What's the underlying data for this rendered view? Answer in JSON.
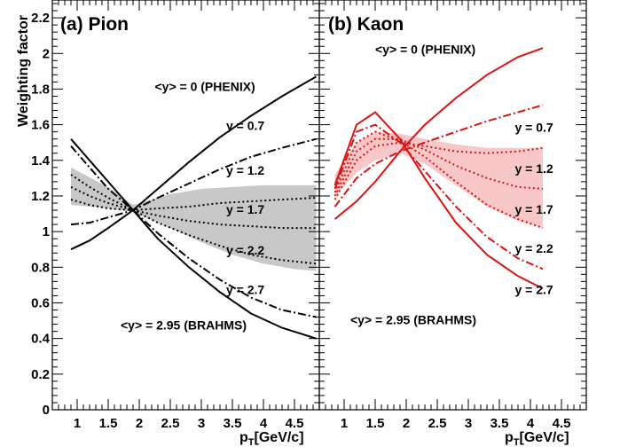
{
  "figure": {
    "y_axis_label": "Weighting factor",
    "x_axis_label_main": "p",
    "x_axis_label_sub": "T",
    "x_axis_label_rest": "[GeV/c]"
  },
  "chart_data": [
    {
      "type": "line",
      "panel_label": "(a) Pion",
      "ylim": [
        0,
        2.3
      ],
      "xlim": [
        0.6,
        4.9
      ],
      "grid": false,
      "x_ticks": [
        "1",
        "1.5",
        "2",
        "2.5",
        "3",
        "3.5",
        "4",
        "4.5"
      ],
      "y_ticks": [
        "0",
        "0.2",
        "0.4",
        "0.6",
        "0.8",
        "1",
        "1.2",
        "1.4",
        "1.6",
        "1.8",
        "2",
        "2.2"
      ],
      "band": {
        "color": "#c8c8c8",
        "x": [
          0.9,
          1.5,
          1.9,
          2.5,
          3.0,
          3.5,
          4.0,
          4.5,
          4.85
        ],
        "upper": [
          1.36,
          1.25,
          1.15,
          1.21,
          1.24,
          1.25,
          1.26,
          1.26,
          1.26
        ],
        "lower": [
          1.15,
          1.13,
          1.11,
          1.02,
          0.94,
          0.87,
          0.82,
          0.79,
          0.78
        ]
      },
      "series": [
        {
          "style": "solid",
          "color": "#000000",
          "x": [
            0.9,
            1.2,
            1.5,
            1.9,
            2.3,
            2.8,
            3.3,
            3.8,
            4.3,
            4.85
          ],
          "y": [
            0.9,
            0.95,
            1.02,
            1.12,
            1.24,
            1.39,
            1.53,
            1.65,
            1.76,
            1.87
          ]
        },
        {
          "style": "dashdot",
          "color": "#000000",
          "x": [
            0.9,
            1.2,
            1.5,
            1.9,
            2.3,
            2.8,
            3.3,
            3.8,
            4.3,
            4.85
          ],
          "y": [
            1.04,
            1.05,
            1.08,
            1.12,
            1.19,
            1.27,
            1.35,
            1.42,
            1.47,
            1.52
          ]
        },
        {
          "style": "dotted",
          "color": "#000000",
          "x": [
            0.9,
            1.2,
            1.5,
            1.9,
            2.3,
            2.8,
            3.3,
            3.8,
            4.3,
            4.85
          ],
          "y": [
            1.18,
            1.15,
            1.13,
            1.12,
            1.13,
            1.14,
            1.16,
            1.17,
            1.18,
            1.19
          ]
        },
        {
          "style": "dotted",
          "color": "#000000",
          "x": [
            0.9,
            1.2,
            1.5,
            1.9,
            2.3,
            2.8,
            3.3,
            3.8,
            4.3,
            4.85
          ],
          "y": [
            1.25,
            1.2,
            1.16,
            1.12,
            1.09,
            1.06,
            1.04,
            1.03,
            1.02,
            1.02
          ]
        },
        {
          "style": "dotted",
          "color": "#000000",
          "x": [
            0.9,
            1.2,
            1.5,
            1.9,
            2.3,
            2.8,
            3.3,
            3.8,
            4.3,
            4.85
          ],
          "y": [
            1.32,
            1.25,
            1.19,
            1.12,
            1.05,
            0.98,
            0.92,
            0.87,
            0.84,
            0.82
          ]
        },
        {
          "style": "dashdot",
          "color": "#000000",
          "x": [
            0.9,
            1.2,
            1.5,
            1.9,
            2.3,
            2.8,
            3.3,
            3.8,
            4.3,
            4.85
          ],
          "y": [
            1.48,
            1.36,
            1.24,
            1.12,
            0.99,
            0.85,
            0.73,
            0.63,
            0.56,
            0.52
          ]
        },
        {
          "style": "solid",
          "color": "#000000",
          "x": [
            0.9,
            1.2,
            1.5,
            1.9,
            2.3,
            2.8,
            3.3,
            3.8,
            4.3,
            4.85
          ],
          "y": [
            1.52,
            1.4,
            1.28,
            1.12,
            0.96,
            0.8,
            0.66,
            0.54,
            0.46,
            0.4
          ]
        }
      ],
      "annotations": [
        {
          "text": "<y> = 0 (PHENIX)",
          "x": 2.25,
          "y": 1.79
        },
        {
          "text": "y = 0.7",
          "x": 3.4,
          "y": 1.57
        },
        {
          "text": "y = 1.2",
          "x": 3.4,
          "y": 1.32
        },
        {
          "text": "y = 1.7",
          "x": 3.4,
          "y": 1.1
        },
        {
          "text": "y = 2.2",
          "x": 3.4,
          "y": 0.87
        },
        {
          "text": "y = 2.7",
          "x": 3.4,
          "y": 0.65
        },
        {
          "text": "<y> = 2.95 (BRAHMS)",
          "x": 1.7,
          "y": 0.45
        }
      ]
    },
    {
      "type": "line",
      "panel_label": "(b) Kaon",
      "ylim": [
        0,
        2.3
      ],
      "xlim": [
        0.6,
        4.9
      ],
      "grid": false,
      "x_ticks": [
        "1",
        "1.5",
        "2",
        "2.5",
        "3",
        "3.5",
        "4",
        "4.5"
      ],
      "y_ticks": [],
      "band": {
        "color": "#f8c8c8",
        "x": [
          0.85,
          1.2,
          1.5,
          1.9,
          2.3,
          2.8,
          3.3,
          3.8,
          4.2
        ],
        "upper": [
          1.32,
          1.5,
          1.56,
          1.55,
          1.52,
          1.49,
          1.47,
          1.47,
          1.47
        ],
        "lower": [
          1.2,
          1.33,
          1.4,
          1.44,
          1.38,
          1.26,
          1.14,
          1.06,
          1.02
        ]
      },
      "series": [
        {
          "style": "solid",
          "color": "#dd1111",
          "x": [
            0.85,
            1.2,
            1.5,
            1.9,
            2.3,
            2.8,
            3.3,
            3.8,
            4.2
          ],
          "y": [
            1.07,
            1.17,
            1.28,
            1.45,
            1.6,
            1.75,
            1.88,
            1.98,
            2.03
          ]
        },
        {
          "style": "dashdot",
          "color": "#dd1111",
          "x": [
            0.85,
            1.2,
            1.5,
            1.9,
            2.3,
            2.8,
            3.3,
            3.8,
            4.2
          ],
          "y": [
            1.14,
            1.3,
            1.38,
            1.45,
            1.5,
            1.56,
            1.62,
            1.67,
            1.71
          ]
        },
        {
          "style": "dotted",
          "color": "#dd1111",
          "x": [
            0.85,
            1.2,
            1.5,
            1.9,
            2.3,
            2.8,
            3.3,
            3.8,
            4.2
          ],
          "y": [
            1.18,
            1.4,
            1.48,
            1.5,
            1.48,
            1.45,
            1.44,
            1.45,
            1.47
          ]
        },
        {
          "style": "dotted",
          "color": "#dd1111",
          "x": [
            0.85,
            1.2,
            1.5,
            1.9,
            2.3,
            2.8,
            3.3,
            3.8,
            4.2
          ],
          "y": [
            1.2,
            1.45,
            1.52,
            1.52,
            1.46,
            1.37,
            1.3,
            1.25,
            1.24
          ]
        },
        {
          "style": "dotted",
          "color": "#dd1111",
          "x": [
            0.85,
            1.2,
            1.5,
            1.9,
            2.3,
            2.8,
            3.3,
            3.8,
            4.2
          ],
          "y": [
            1.22,
            1.5,
            1.56,
            1.51,
            1.42,
            1.28,
            1.15,
            1.07,
            1.02
          ]
        },
        {
          "style": "dashdot",
          "color": "#dd1111",
          "x": [
            0.85,
            1.2,
            1.5,
            1.9,
            2.3,
            2.8,
            3.3,
            3.8,
            4.2
          ],
          "y": [
            1.24,
            1.56,
            1.6,
            1.5,
            1.34,
            1.14,
            0.97,
            0.85,
            0.79
          ]
        },
        {
          "style": "solid",
          "color": "#dd1111",
          "x": [
            0.85,
            1.2,
            1.5,
            1.9,
            2.3,
            2.8,
            3.3,
            3.8,
            4.2
          ],
          "y": [
            1.26,
            1.6,
            1.67,
            1.52,
            1.3,
            1.05,
            0.87,
            0.75,
            0.68
          ]
        }
      ],
      "annotations": [
        {
          "text": "<y> = 0 (PHENIX)",
          "x": 1.5,
          "y": 2.0
        },
        {
          "text": "y = 0.7",
          "x": 3.75,
          "y": 1.56
        },
        {
          "text": "y = 1.2",
          "x": 3.75,
          "y": 1.33
        },
        {
          "text": "y = 1.7",
          "x": 3.75,
          "y": 1.1
        },
        {
          "text": "y = 2.2",
          "x": 3.75,
          "y": 0.88
        },
        {
          "text": "y = 2.7",
          "x": 3.75,
          "y": 0.65
        },
        {
          "text": "<y> = 2.95 (BRAHMS)",
          "x": 1.1,
          "y": 0.48
        }
      ]
    }
  ]
}
